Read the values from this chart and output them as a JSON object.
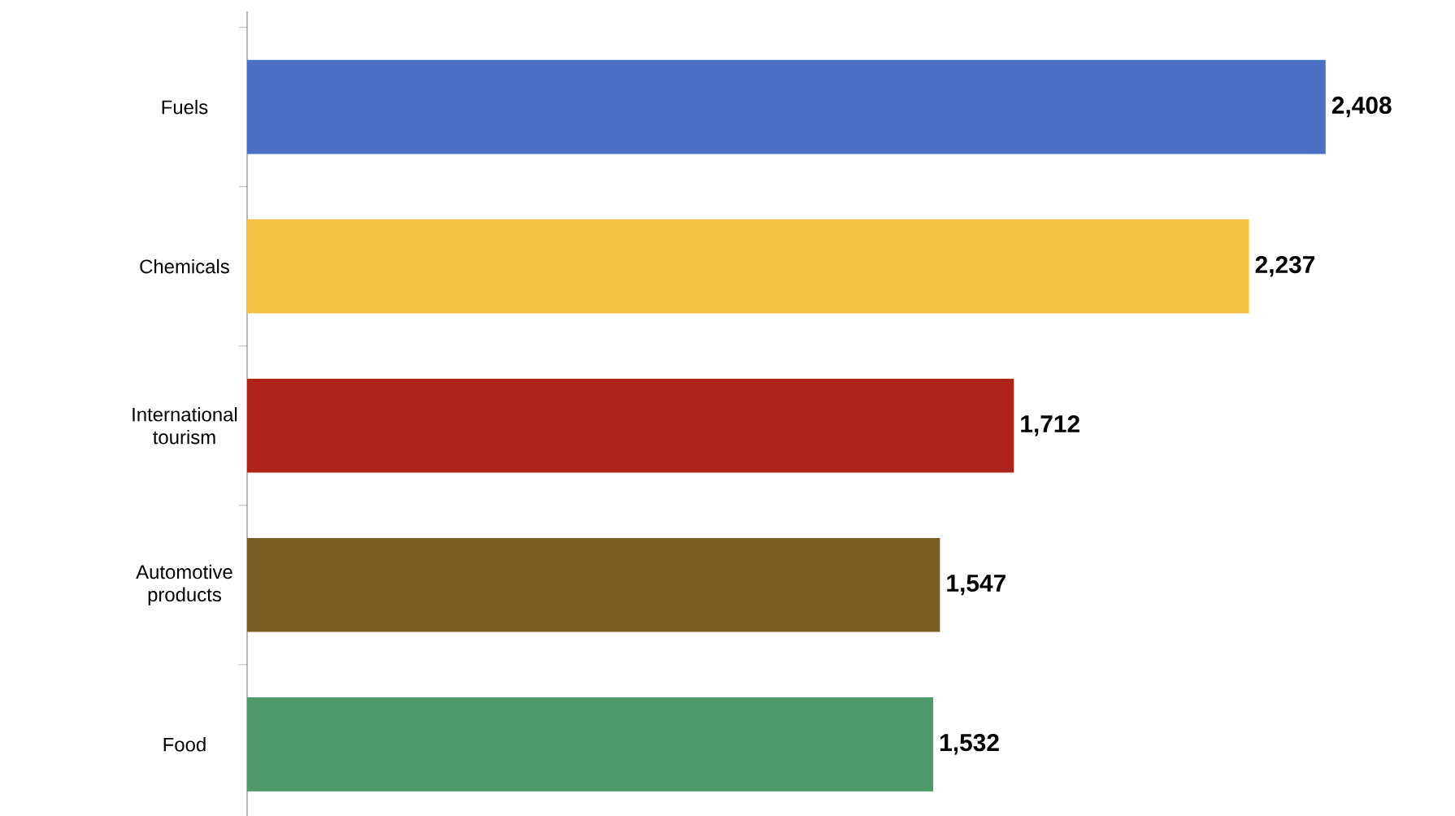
{
  "chart_data": {
    "type": "bar",
    "orientation": "horizontal",
    "categories": [
      "Fuels",
      "Chemicals",
      "International tourism",
      "Automotive products",
      "Food"
    ],
    "values": [
      2408,
      2237,
      1712,
      1547,
      1532
    ],
    "colors": [
      "#4a6fc4",
      "#f5c143",
      "#b0231a",
      "#7d5e22",
      "#4e9a6a"
    ],
    "value_labels": [
      "2,408",
      "2,237",
      "1,712",
      "1,547",
      "1,532"
    ]
  }
}
